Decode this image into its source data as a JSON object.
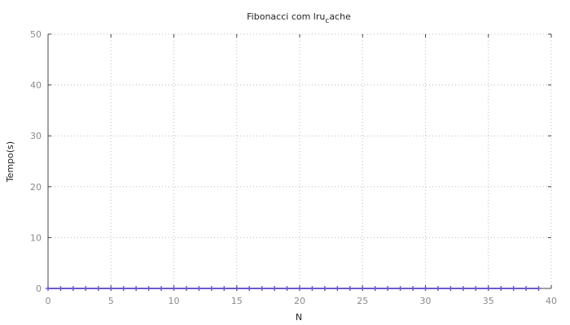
{
  "chart_data": {
    "type": "line",
    "title": "Fibonacci com lru",
    "title_subscript": "c",
    "title_suffix": "ache",
    "xlabel": "N",
    "ylabel": "Tempo(s)",
    "xlim": [
      0,
      40
    ],
    "ylim": [
      0,
      50
    ],
    "x_ticks": [
      0,
      5,
      10,
      15,
      20,
      25,
      30,
      35,
      40
    ],
    "y_ticks": [
      0,
      10,
      20,
      30,
      40,
      50
    ],
    "grid": true,
    "colors": {
      "series": "#6a5acd",
      "grid": "#bbbbbb",
      "axis": "#444444"
    },
    "series": [
      {
        "marker": "plus",
        "x": [
          0,
          1,
          2,
          3,
          4,
          5,
          6,
          7,
          8,
          9,
          10,
          11,
          12,
          13,
          14,
          15,
          16,
          17,
          18,
          19,
          20,
          21,
          22,
          23,
          24,
          25,
          26,
          27,
          28,
          29,
          30,
          31,
          32,
          33,
          34,
          35,
          36,
          37,
          38,
          39
        ],
        "values": [
          0,
          0,
          0,
          0,
          0,
          0,
          0,
          0,
          0,
          0,
          0,
          0,
          0,
          0,
          0,
          0,
          0,
          0,
          0,
          0,
          0,
          0,
          0,
          0,
          0,
          0,
          0,
          0,
          0,
          0,
          0,
          0,
          0,
          0,
          0,
          0,
          0,
          0,
          0,
          0
        ]
      }
    ]
  }
}
